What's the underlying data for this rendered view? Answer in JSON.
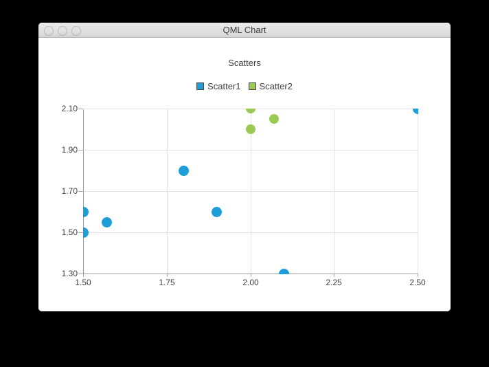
{
  "window": {
    "title": "QML Chart",
    "controls": {
      "close_color": "#fc5753",
      "minimize_color": "#fdbc40",
      "zoom_color": "#33c748"
    }
  },
  "chart_data": {
    "type": "scatter",
    "title": "Scatters",
    "series": [
      {
        "name": "Scatter1",
        "color": "#1f9dd9",
        "marker_size": 15,
        "points": [
          [
            1.5,
            1.5
          ],
          [
            1.5,
            1.6
          ],
          [
            1.57,
            1.55
          ],
          [
            1.8,
            1.8
          ],
          [
            1.9,
            1.6
          ],
          [
            2.1,
            1.3
          ],
          [
            2.5,
            2.1
          ]
        ]
      },
      {
        "name": "Scatter2",
        "color": "#99ca53",
        "marker_size": 14,
        "points": [
          [
            2.0,
            2.0
          ],
          [
            2.0,
            2.1
          ],
          [
            2.07,
            2.05
          ]
        ]
      }
    ],
    "xlim": [
      1.5,
      2.5
    ],
    "ylim": [
      1.3,
      2.1
    ],
    "x_ticks": [
      1.5,
      1.75,
      2.0,
      2.25,
      2.5
    ],
    "y_ticks": [
      1.3,
      1.5,
      1.7,
      1.9,
      2.1
    ],
    "x_tick_labels": [
      "1.50",
      "1.75",
      "2.00",
      "2.25",
      "2.50"
    ],
    "y_tick_labels": [
      "1.30",
      "1.50",
      "1.70",
      "1.90",
      "2.10"
    ],
    "grid": true,
    "legend_position": "top",
    "grid_color": "#e1e1e1",
    "axis_line_color": "#999999",
    "tick_color": "#a8a8a8",
    "label_color": "#404044",
    "legend_marker_border": "#454547"
  }
}
